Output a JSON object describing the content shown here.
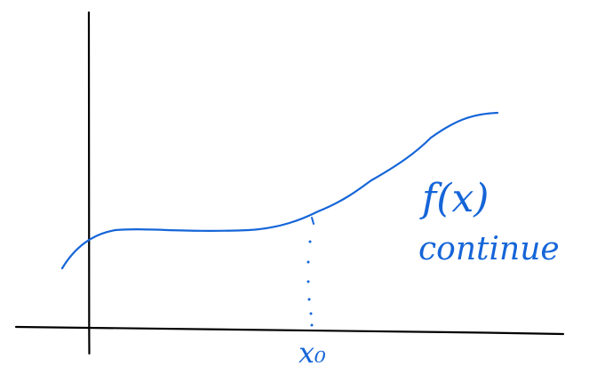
{
  "diagram": {
    "ink_color": "#1565D8",
    "axis_color": "#000000",
    "curve_label": "f(x)",
    "curve_note": "continue",
    "point_label": "x₀"
  }
}
